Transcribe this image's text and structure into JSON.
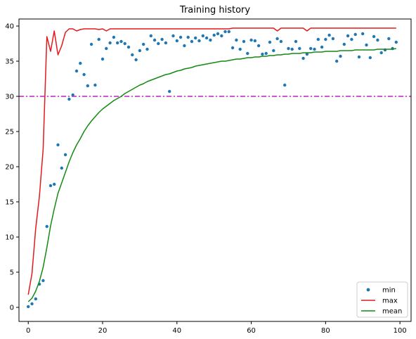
{
  "chart_data": {
    "type": "line",
    "title": "Training history",
    "xlabel": "",
    "ylabel": "",
    "xlim": [
      -2.5,
      103
    ],
    "ylim": [
      -2,
      41
    ],
    "xticks": [
      0,
      20,
      40,
      60,
      80,
      100
    ],
    "yticks": [
      0,
      5,
      10,
      15,
      20,
      25,
      30,
      35,
      40
    ],
    "grid": false,
    "legend_position": "lower-right",
    "colors": {
      "min": "#1f77b4",
      "max": "#e31a1c",
      "mean": "#138a13",
      "threshold": "#c71bc7"
    },
    "threshold": {
      "y": 30,
      "style": "dash-dot"
    },
    "series": [
      {
        "name": "min",
        "style": "points",
        "x": [
          0,
          1,
          2,
          3,
          4,
          5,
          6,
          7,
          8,
          9,
          10,
          11,
          12,
          13,
          14,
          15,
          16,
          17,
          18,
          19,
          20,
          21,
          22,
          23,
          24,
          25,
          26,
          27,
          28,
          29,
          30,
          31,
          32,
          33,
          34,
          35,
          36,
          37,
          38,
          39,
          40,
          41,
          42,
          43,
          44,
          45,
          46,
          47,
          48,
          49,
          50,
          51,
          52,
          53,
          54,
          55,
          56,
          57,
          58,
          59,
          60,
          61,
          62,
          63,
          64,
          65,
          66,
          67,
          68,
          69,
          70,
          71,
          72,
          73,
          74,
          75,
          76,
          77,
          78,
          79,
          80,
          81,
          82,
          83,
          84,
          85,
          86,
          87,
          88,
          89,
          90,
          91,
          92,
          93,
          94,
          95,
          96,
          97,
          98,
          99
        ],
        "values": [
          0.1,
          0.5,
          1.2,
          3.3,
          3.8,
          11.5,
          17.3,
          17.5,
          23.1,
          19.8,
          21.7,
          29.6,
          30.2,
          33.6,
          34.7,
          33.1,
          31.5,
          37.4,
          31.6,
          38.1,
          35.3,
          36.8,
          37.6,
          38.4,
          37.6,
          37.8,
          37.5,
          37.0,
          35.9,
          35.2,
          36.5,
          37.4,
          36.7,
          38.6,
          38.0,
          37.5,
          38.1,
          37.6,
          30.7,
          38.6,
          37.9,
          38.4,
          37.2,
          38.4,
          37.8,
          38.3,
          37.9,
          38.6,
          38.3,
          38.0,
          38.7,
          38.9,
          38.6,
          39.2,
          39.2,
          36.9,
          38.0,
          36.7,
          37.8,
          36.1,
          38.0,
          37.9,
          37.2,
          36.0,
          36.1,
          37.7,
          36.5,
          38.2,
          37.8,
          31.6,
          36.8,
          36.7,
          37.8,
          36.8,
          35.4,
          36.0,
          36.8,
          36.7,
          38.1,
          37.0,
          38.1,
          38.7,
          38.2,
          35.0,
          35.7,
          37.4,
          38.6,
          38.1,
          38.8,
          35.6,
          38.9,
          37.3,
          35.5,
          38.5,
          38.0,
          36.2,
          36.6,
          38.2,
          36.8,
          37.7
        ]
      },
      {
        "name": "max",
        "style": "line",
        "x": [
          0,
          1,
          2,
          3,
          4,
          5,
          6,
          7,
          8,
          9,
          10,
          11,
          12,
          13,
          14,
          15,
          16,
          17,
          18,
          19,
          20,
          21,
          22,
          23,
          24,
          25,
          26,
          27,
          28,
          29,
          30,
          31,
          32,
          33,
          34,
          35,
          36,
          37,
          38,
          39,
          40,
          41,
          42,
          43,
          44,
          45,
          46,
          47,
          48,
          49,
          50,
          51,
          52,
          53,
          54,
          55,
          56,
          57,
          58,
          59,
          60,
          61,
          62,
          63,
          64,
          65,
          66,
          67,
          68,
          69,
          70,
          71,
          72,
          73,
          74,
          75,
          76,
          77,
          78,
          79,
          80,
          81,
          82,
          83,
          84,
          85,
          86,
          87,
          88,
          89,
          90,
          91,
          92,
          93,
          94,
          95,
          96,
          97,
          98,
          99
        ],
        "values": [
          1.8,
          4.8,
          11.2,
          15.8,
          22.5,
          38.5,
          36.4,
          39.3,
          35.9,
          37.2,
          39.1,
          39.6,
          39.6,
          39.3,
          39.5,
          39.6,
          39.6,
          39.6,
          39.6,
          39.5,
          39.6,
          39.3,
          39.6,
          39.6,
          39.6,
          39.6,
          39.6,
          39.6,
          39.6,
          39.6,
          39.6,
          39.6,
          39.6,
          39.6,
          39.6,
          39.6,
          39.6,
          39.6,
          39.6,
          39.6,
          39.6,
          39.6,
          39.6,
          39.6,
          39.6,
          39.6,
          39.6,
          39.6,
          39.6,
          39.6,
          39.6,
          39.6,
          39.6,
          39.6,
          39.6,
          39.7,
          39.7,
          39.7,
          39.7,
          39.7,
          39.7,
          39.7,
          39.7,
          39.7,
          39.7,
          39.7,
          39.7,
          39.3,
          39.7,
          39.7,
          39.7,
          39.7,
          39.7,
          39.7,
          39.7,
          39.3,
          39.7,
          39.7,
          39.7,
          39.7,
          39.7,
          39.7,
          39.7,
          39.7,
          39.7,
          39.7,
          39.7,
          39.7,
          39.7,
          39.7,
          39.7,
          39.7,
          39.7,
          39.7,
          39.7,
          39.7,
          39.7,
          39.7,
          39.7,
          39.7
        ]
      },
      {
        "name": "mean",
        "style": "line",
        "x": [
          0,
          1,
          2,
          3,
          4,
          5,
          6,
          7,
          8,
          9,
          10,
          11,
          12,
          13,
          14,
          15,
          16,
          17,
          18,
          19,
          20,
          21,
          22,
          23,
          24,
          25,
          26,
          27,
          28,
          29,
          30,
          31,
          32,
          33,
          34,
          35,
          36,
          37,
          38,
          39,
          40,
          41,
          42,
          43,
          44,
          45,
          46,
          47,
          48,
          49,
          50,
          51,
          52,
          53,
          54,
          55,
          56,
          57,
          58,
          59,
          60,
          61,
          62,
          63,
          64,
          65,
          66,
          67,
          68,
          69,
          70,
          71,
          72,
          73,
          74,
          75,
          76,
          77,
          78,
          79,
          80,
          81,
          82,
          83,
          84,
          85,
          86,
          87,
          88,
          89,
          90,
          91,
          92,
          93,
          94,
          95,
          96,
          97,
          98,
          99
        ],
        "values": [
          0.8,
          1.3,
          2.3,
          3.7,
          5.7,
          8.5,
          11.6,
          14.0,
          16.2,
          17.7,
          19.2,
          20.7,
          22.0,
          23.1,
          24.0,
          25.0,
          25.8,
          26.5,
          27.1,
          27.7,
          28.2,
          28.6,
          29.0,
          29.4,
          29.7,
          30.0,
          30.4,
          30.7,
          31.0,
          31.3,
          31.6,
          31.8,
          32.1,
          32.3,
          32.5,
          32.7,
          32.9,
          33.1,
          33.2,
          33.4,
          33.6,
          33.7,
          33.9,
          34.0,
          34.1,
          34.3,
          34.4,
          34.5,
          34.6,
          34.7,
          34.8,
          34.9,
          35.0,
          35.0,
          35.1,
          35.2,
          35.3,
          35.3,
          35.4,
          35.5,
          35.5,
          35.6,
          35.6,
          35.7,
          35.7,
          35.8,
          35.8,
          35.9,
          35.9,
          36.0,
          36.0,
          36.1,
          36.1,
          36.1,
          36.2,
          36.2,
          36.2,
          36.3,
          36.3,
          36.3,
          36.4,
          36.4,
          36.4,
          36.4,
          36.5,
          36.5,
          36.5,
          36.5,
          36.6,
          36.6,
          36.6,
          36.6,
          36.6,
          36.6,
          36.7,
          36.7,
          36.7,
          36.7,
          36.7,
          36.8
        ]
      }
    ]
  }
}
